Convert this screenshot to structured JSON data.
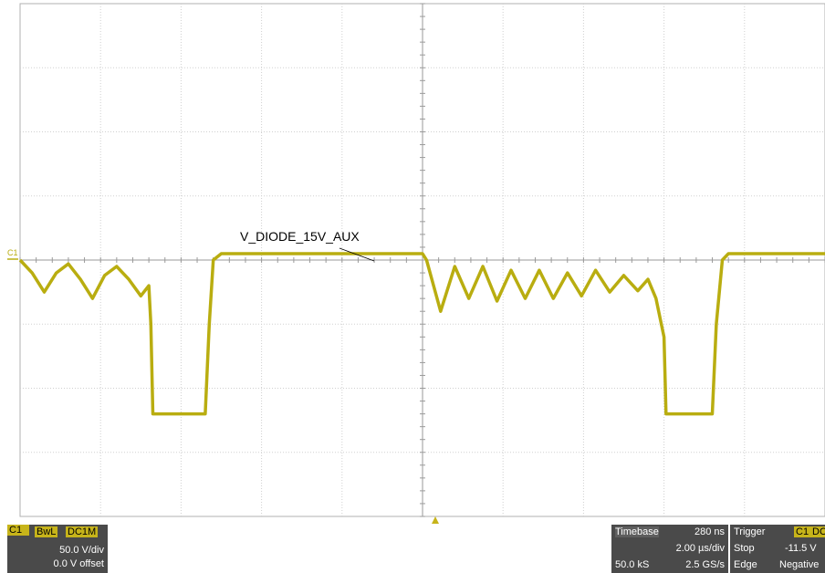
{
  "chart_data": {
    "type": "line",
    "title": "",
    "xlabel": "",
    "ylabel": "",
    "grid": true,
    "x_units": "µs",
    "y_units": "V",
    "xlim": [
      -10,
      10
    ],
    "ylim": [
      -200,
      200
    ],
    "series": [
      {
        "name": "",
        "color": "#b9ad10",
        "x": [
          -10.0,
          -9.7,
          -9.4,
          -9.1,
          -8.8,
          -8.5,
          -8.2,
          -7.9,
          -7.6,
          -7.3,
          -7.0,
          -6.8,
          -6.75,
          -6.7,
          -5.4,
          -5.3,
          -5.2,
          -5.0,
          -3.0,
          -1.0,
          0.0,
          0.1,
          0.45,
          0.8,
          1.15,
          1.5,
          1.85,
          2.2,
          2.55,
          2.9,
          3.25,
          3.6,
          3.95,
          4.3,
          4.65,
          5.0,
          5.35,
          5.6,
          5.8,
          6.0,
          6.05,
          7.2,
          7.3,
          7.45,
          7.6,
          10.0
        ],
        "y": [
          0,
          -10,
          -25,
          -10,
          -3,
          -15,
          -30,
          -12,
          -5,
          -15,
          -28,
          -20,
          -50,
          -120,
          -120,
          -50,
          0,
          5,
          5,
          5,
          5,
          0,
          -40,
          -5,
          -30,
          -5,
          -32,
          -8,
          -30,
          -8,
          -30,
          -10,
          -28,
          -8,
          -25,
          -12,
          -24,
          -15,
          -30,
          -60,
          -120,
          -120,
          -50,
          0,
          5,
          5
        ]
      }
    ],
    "annotations": [
      "V_DIODE_15V_AUX"
    ],
    "channel_marker": "C1"
  },
  "channel_panel": {
    "label": "C1",
    "bandwidth_badge": "BwL",
    "coupling_badge": "DC1M",
    "vdiv": "50.0 V/div",
    "offset": "0.0 V offset"
  },
  "timebase_panel": {
    "label": "Timebase",
    "delay": "280 ns",
    "tdiv": "2.00 µs/div",
    "samples": "50.0 kS",
    "rate": "2.5 GS/s"
  },
  "trigger_panel": {
    "label": "Trigger",
    "source_badge": "C1",
    "coupling_badge": "DC",
    "mode": "Stop",
    "level": "-11.5 V",
    "type": "Edge",
    "slope": "Negative"
  }
}
